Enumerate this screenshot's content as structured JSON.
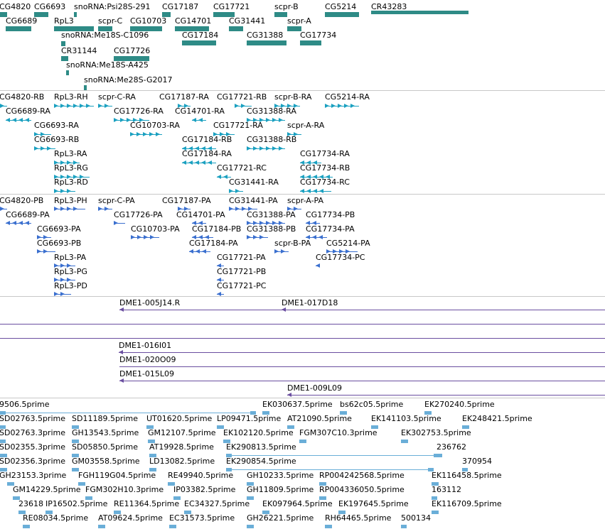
{
  "colors": {
    "gene": "#2e8b86",
    "rna": "#1aa0c0",
    "cds": "#3a6fcf",
    "clone": "#6a4ea0",
    "est": "#6aaed8"
  },
  "tracks": {
    "genes": [
      "CG4820",
      "CG6693",
      "snoRNA:Psi28S-291",
      "CG17187",
      "CG17721",
      "scpr-B",
      "CG5214",
      "CR43283",
      "CG6689",
      "RpL3",
      "scpr-C",
      "CG10703",
      "CG14701",
      "CG31441",
      "scpr-A",
      "snoRNA:Me18S-C1096",
      "CG17184",
      "CG31388",
      "CG17734",
      "CR31144",
      "CG17726",
      "snoRNA:Me18S-A425",
      "snoRNA:Me28S-G2017"
    ],
    "transcripts": [
      "CG4820-RB",
      "RpL3-RH",
      "scpr-C-RA",
      "CG17187-RA",
      "CG17721-RB",
      "scpr-B-RA",
      "CG5214-RA",
      "CG6689-RA",
      "CG17726-RA",
      "CG14701-RA",
      "CG31388-RA",
      "CG6693-RA",
      "CG10703-RA",
      "CG17721-RA",
      "scpr-A-RA",
      "CG6693-RB",
      "CG17184-RB",
      "CG31388-RB",
      "RpL3-RA",
      "CG17184-RA",
      "CG17734-RA",
      "RpL3-RG",
      "CG17721-RC",
      "CG17734-RB",
      "RpL3-RD",
      "CG31441-RA",
      "CG17734-RC"
    ],
    "proteins": [
      "CG4820-PB",
      "RpL3-PH",
      "scpr-C-PA",
      "CG17187-PA",
      "CG31441-PA",
      "scpr-A-PA",
      "CG6689-PA",
      "CG17726-PA",
      "CG14701-PA",
      "CG31388-PA",
      "CG17734-PB",
      "CG6693-PA",
      "CG10703-PA",
      "CG17184-PB",
      "CG31388-PB",
      "CG17734-PA",
      "CG6693-PB",
      "CG17184-PA",
      "scpr-B-PA",
      "CG5214-PA",
      "RpL3-PA",
      "CG17721-PA",
      "CG17734-PC",
      "RpL3-PG",
      "CG17721-PB",
      "RpL3-PD",
      "CG17721-PC"
    ],
    "clones_a": [
      "DME1-005J14.R",
      "DME1-017D18"
    ],
    "clones_b": [
      "DME1-016I01",
      "DME1-020O09",
      "DME1-015L09",
      "DME1-009L09"
    ],
    "ests": [
      "9506.5prime",
      "EK030637.5prime",
      "bs62c05.5prime",
      "EK270240.5prime",
      "SD02763.5prime",
      "SD11189.5prime",
      "UT01620.5prime",
      "LP09471.5prime",
      "AT21090.5prime",
      "EK141103.5prime",
      "EK248421.5prime",
      "SD02763.3prime",
      "GH13543.5prime",
      "GM12107.5prime",
      "EK102120.5prime",
      "FGM307C10.3prime",
      "EK302753.5prime",
      "SD02355.3prime",
      "SD05850.5prime",
      "AT19928.5prime",
      "EK290813.5prime",
      "236762",
      "SD02356.3prime",
      "GM03558.5prime",
      "LD13082.5prime",
      "EK290854.5prime",
      "370954",
      "GH23153.3prime",
      "FGH119G04.5prime",
      "RE49940.5prime",
      "GH10233.5prime",
      "RP004242568.5prime",
      "EK116458.5prime",
      "GM14229.5prime",
      "FGM302H10.3prime",
      "IP03382.5prime",
      "GH11809.5prime",
      "RP004336050.5prime",
      "163112",
      "23618",
      "IP16502.5prime",
      "RE11364.5prime",
      "EC34327.5prime",
      "EK097964.5prime",
      "EK197645.5prime",
      "EK116709.5prime",
      "RE08034.5prime",
      "AT09624.5prime",
      "EC31573.5prime",
      "GH26221.5prime",
      "RH64465.5prime",
      "500134"
    ]
  }
}
